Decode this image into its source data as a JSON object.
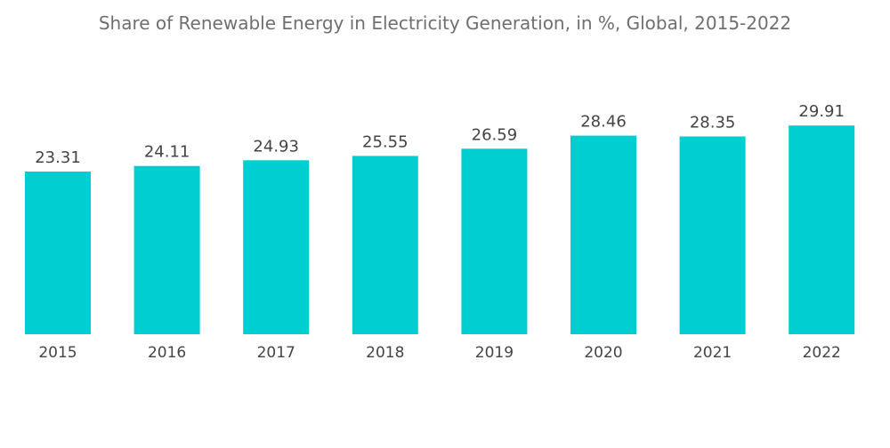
{
  "chart_data": {
    "type": "bar",
    "title": "Share of Renewable Energy in Electricity Generation, in %, Global, 2015-2022",
    "xlabel": "",
    "ylabel": "",
    "categories": [
      "2015",
      "2016",
      "2017",
      "2018",
      "2019",
      "2020",
      "2021",
      "2022"
    ],
    "values": [
      23.31,
      24.11,
      24.93,
      25.55,
      26.59,
      28.46,
      28.35,
      29.91
    ],
    "value_labels": [
      "23.31",
      "24.11",
      "24.93",
      "25.55",
      "26.59",
      "28.46",
      "28.35",
      "29.91"
    ],
    "ylim": [
      0,
      30
    ],
    "grid": false,
    "legend": "none",
    "bar_color": "#00CED1"
  }
}
